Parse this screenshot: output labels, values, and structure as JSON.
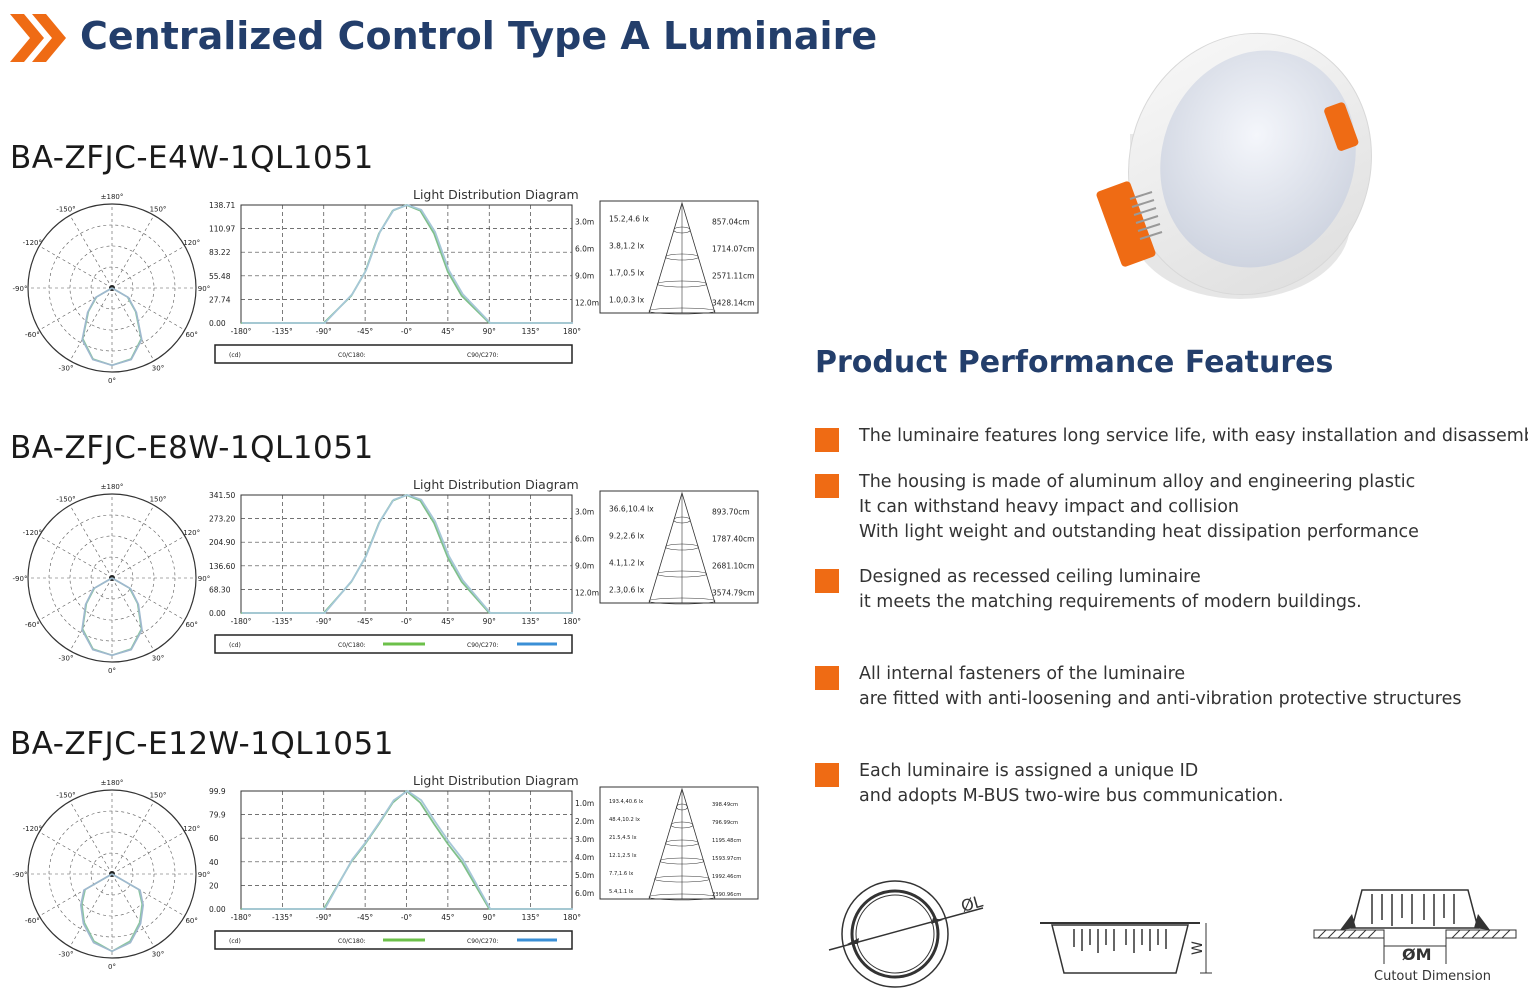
{
  "header": {
    "title": "Centralized Control Type A Luminaire"
  },
  "ldd_label": "Light Distribution Diagram",
  "polar_labels": [
    "±180°",
    "-150°",
    "150°",
    "-120°",
    "120°",
    "-90°",
    "90°",
    "-60°",
    "60°",
    "-30°",
    "30°",
    "0°"
  ],
  "x_ticks": [
    "-180°",
    "-135°",
    "-90°",
    "-45°",
    "-0°",
    "45°",
    "90°",
    "135°",
    "180°"
  ],
  "legend": {
    "unit": "(cd)",
    "c0": "C0/C180:",
    "c90": "C90/C270:",
    "c0_color": "#6cc04a",
    "c90_color": "#3a8fd6"
  },
  "products": [
    {
      "model": "BA-ZFJC-E4W-1QL1051",
      "y_ticks": [
        "138.71",
        "110.97",
        "83.22",
        "55.48",
        "27.74",
        "0.00"
      ],
      "cone": [
        {
          "h": "3.0m",
          "lux": "15.2,4.6  lx",
          "dia": "857.04cm"
        },
        {
          "h": "6.0m",
          "lux": "3.8,1.2  lx",
          "dia": "1714.07cm"
        },
        {
          "h": "9.0m",
          "lux": "1.7,0.5  lx",
          "dia": "2571.11cm"
        },
        {
          "h": "12.0m",
          "lux": "1.0,0.3  lx",
          "dia": "3428.14cm"
        }
      ],
      "chart_data": {
        "type": "line",
        "title": "Light Distribution Diagram",
        "x": [
          -180,
          -135,
          -90,
          -60,
          -45,
          -30,
          -15,
          0,
          15,
          30,
          45,
          60,
          90,
          135,
          180
        ],
        "series": [
          {
            "name": "C0/C180",
            "values": [
              0,
              0,
              0,
              32,
              60,
              105,
              132,
              138.7,
              132,
              105,
              60,
              32,
              0,
              0,
              0
            ]
          },
          {
            "name": "C90/C270",
            "values": [
              0,
              0,
              0,
              34,
              62,
              107,
              133,
              138.7,
              133,
              107,
              62,
              34,
              0,
              0,
              0
            ]
          }
        ],
        "ylim": [
          0,
          138.71
        ]
      }
    },
    {
      "model": "BA-ZFJC-E8W-1QL1051",
      "y_ticks": [
        "341.50",
        "273.20",
        "204.90",
        "136.60",
        "68.30",
        "0.00"
      ],
      "cone": [
        {
          "h": "3.0m",
          "lux": "36.6,10.4  lx",
          "dia": "893.70cm"
        },
        {
          "h": "6.0m",
          "lux": "9.2,2.6  lx",
          "dia": "1787.40cm"
        },
        {
          "h": "9.0m",
          "lux": "4.1,1.2  lx",
          "dia": "2681.10cm"
        },
        {
          "h": "12.0m",
          "lux": "2.3,0.6  lx",
          "dia": "3574.79cm"
        }
      ],
      "chart_data": {
        "type": "line",
        "title": "Light Distribution Diagram",
        "x": [
          -180,
          -135,
          -90,
          -60,
          -45,
          -30,
          -15,
          0,
          15,
          30,
          45,
          60,
          90,
          135,
          180
        ],
        "series": [
          {
            "name": "C0/C180",
            "values": [
              0,
              0,
              0,
              90,
              160,
              260,
              325,
              341.5,
              325,
              260,
              160,
              90,
              0,
              0,
              0
            ]
          },
          {
            "name": "C90/C270",
            "values": [
              0,
              0,
              0,
              95,
              165,
              265,
              328,
              341.5,
              328,
              265,
              165,
              95,
              0,
              0,
              0
            ]
          }
        ],
        "ylim": [
          0,
          341.5
        ]
      }
    },
    {
      "model": "BA-ZFJC-E12W-1QL1051",
      "y_ticks": [
        "99.9",
        "79.9",
        "60",
        "40",
        "20",
        "0.00"
      ],
      "cone": [
        {
          "h": "1.0m",
          "lux": "193.4,40.6 lx",
          "dia": "398.49cm"
        },
        {
          "h": "2.0m",
          "lux": "48.4,10.2 lx",
          "dia": "796.99cm"
        },
        {
          "h": "3.0m",
          "lux": "21.5,4.5 lx",
          "dia": "1195.48cm"
        },
        {
          "h": "4.0m",
          "lux": "12.1,2.5 lx",
          "dia": "1593.97cm"
        },
        {
          "h": "5.0m",
          "lux": "7.7,1.6 lx",
          "dia": "1992.46cm"
        },
        {
          "h": "6.0m",
          "lux": "5.4,1.1 lx",
          "dia": "2390.96cm"
        }
      ],
      "chart_data": {
        "type": "line",
        "title": "Light Distribution Diagram",
        "x": [
          -180,
          -135,
          -90,
          -60,
          -45,
          -30,
          -15,
          0,
          15,
          30,
          45,
          60,
          90,
          135,
          180
        ],
        "series": [
          {
            "name": "C0/C180",
            "values": [
              0,
              0,
              0,
              40,
              55,
              72,
              90,
              99.9,
              90,
              72,
              55,
              40,
              0,
              0,
              0
            ]
          },
          {
            "name": "C90/C270",
            "values": [
              0,
              0,
              0,
              42,
              57,
              74,
              92,
              99.9,
              92,
              74,
              57,
              42,
              0,
              0,
              0
            ]
          }
        ],
        "ylim": [
          0,
          99.9
        ]
      }
    }
  ],
  "features": {
    "title": "Product Performance Features",
    "items": [
      {
        "lines": [
          "The luminaire features long service life, with easy installation and disassembly."
        ]
      },
      {
        "lines": [
          "The housing is made of aluminum alloy and engineering plastic",
          "It can withstand heavy impact and collision",
          "With light weight and outstanding heat dissipation performance"
        ]
      },
      {
        "lines": [
          "Designed as recessed ceiling luminaire",
          "it meets the matching requirements of modern buildings."
        ]
      },
      {
        "lines": [
          "All internal fasteners of the luminaire",
          "are fitted with anti-loosening and anti-vibration protective structures"
        ]
      },
      {
        "lines": [
          "Each luminaire is assigned a unique ID",
          "and adopts M-BUS two-wire bus communication."
        ]
      }
    ]
  },
  "dimensions": {
    "phi_l": "ØL",
    "w": "W",
    "phi_m": "ØM",
    "cutout_label": "Cutout Dimension"
  },
  "colors": {
    "accent": "#ef6b14",
    "title": "#233e6b"
  }
}
